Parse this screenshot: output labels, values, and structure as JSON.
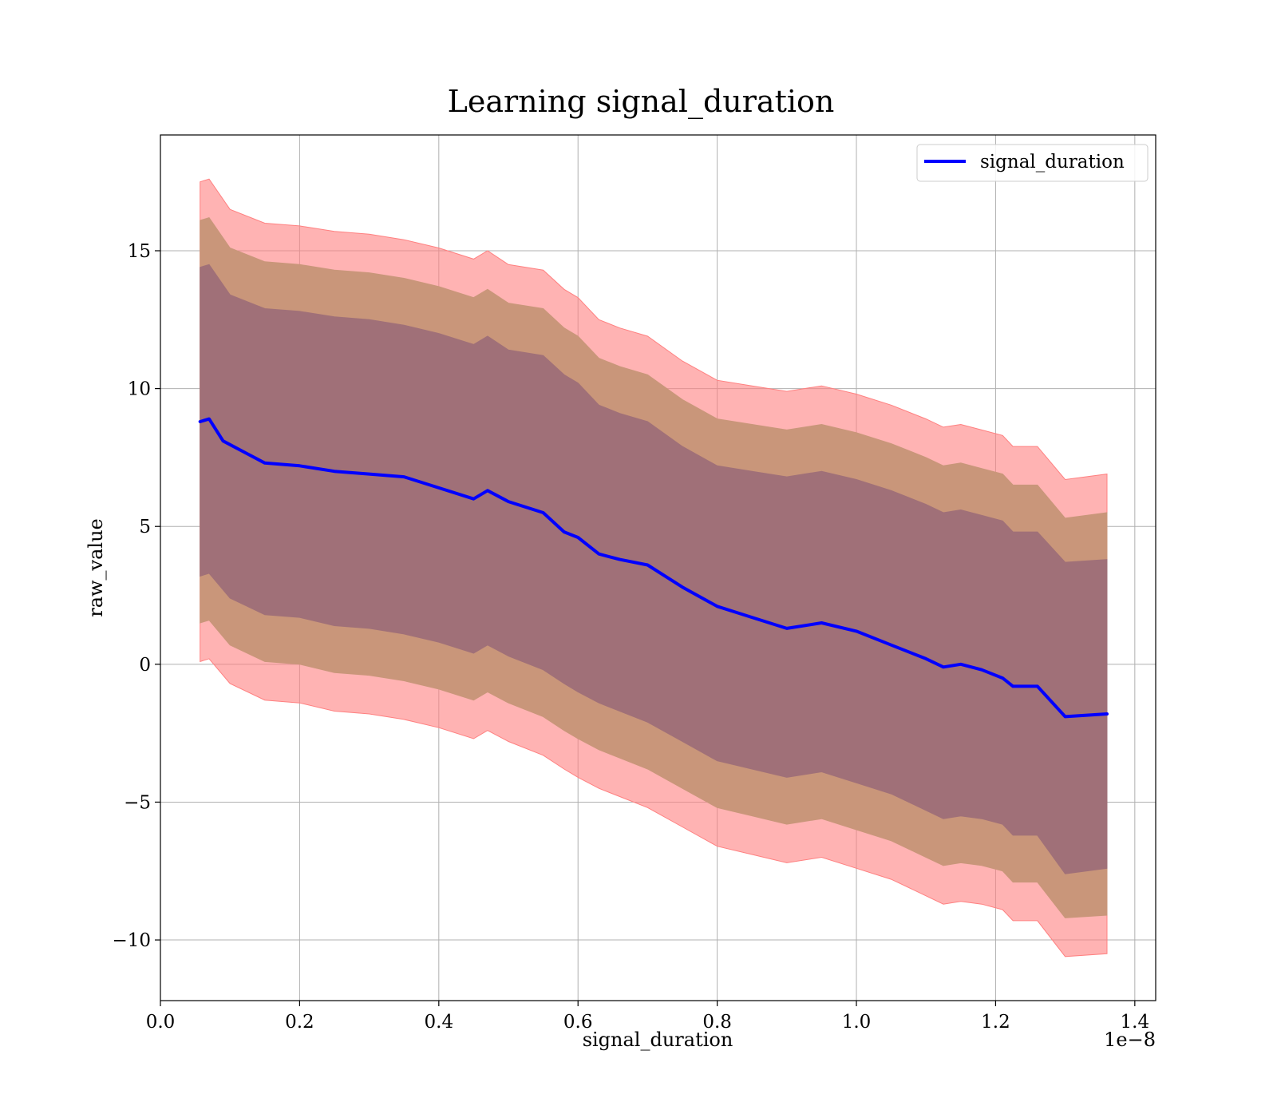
{
  "chart_data": {
    "type": "line",
    "title": "Learning signal_duration",
    "xlabel": "signal_duration",
    "ylabel": "raw_value",
    "x_offset_label": "1e−8",
    "xlim": [
      0.0,
      1.43
    ],
    "ylim": [
      -12.2,
      19.2
    ],
    "x_ticks": [
      0.0,
      0.2,
      0.4,
      0.6,
      0.8,
      1.0,
      1.2,
      1.4
    ],
    "x_tick_labels": [
      "0.0",
      "0.2",
      "0.4",
      "0.6",
      "0.8",
      "1.0",
      "1.2",
      "1.4"
    ],
    "y_ticks": [
      -10,
      -5,
      0,
      5,
      10,
      15
    ],
    "y_tick_labels": [
      "−10",
      "−5",
      "0",
      "5",
      "10",
      "15"
    ],
    "grid": true,
    "legend_position": "top-right",
    "series": [
      {
        "name": "signal_duration",
        "color": "#0000ff",
        "x": [
          0.057,
          0.07,
          0.09,
          0.12,
          0.15,
          0.2,
          0.25,
          0.3,
          0.35,
          0.4,
          0.45,
          0.47,
          0.5,
          0.55,
          0.58,
          0.6,
          0.63,
          0.66,
          0.7,
          0.75,
          0.8,
          0.85,
          0.9,
          0.95,
          1.0,
          1.05,
          1.1,
          1.125,
          1.15,
          1.18,
          1.21,
          1.225,
          1.26,
          1.3,
          1.36
        ],
        "y": [
          8.8,
          8.9,
          8.1,
          7.7,
          7.3,
          7.2,
          7.0,
          6.9,
          6.8,
          6.4,
          6.0,
          6.3,
          5.9,
          5.5,
          4.8,
          4.6,
          4.0,
          3.8,
          3.6,
          2.8,
          2.1,
          1.7,
          1.3,
          1.5,
          1.2,
          0.7,
          0.2,
          -0.1,
          0.0,
          -0.2,
          -0.5,
          -0.8,
          -0.8,
          -1.9,
          -1.8
        ]
      }
    ],
    "bands": [
      {
        "name": "outer",
        "color": "#ff8080",
        "opacity": 0.6,
        "x": [
          0.057,
          0.07,
          0.1,
          0.15,
          0.2,
          0.25,
          0.3,
          0.35,
          0.4,
          0.45,
          0.47,
          0.5,
          0.55,
          0.58,
          0.6,
          0.63,
          0.66,
          0.7,
          0.75,
          0.8,
          0.85,
          0.9,
          0.95,
          1.0,
          1.05,
          1.1,
          1.125,
          1.15,
          1.18,
          1.21,
          1.225,
          1.26,
          1.3,
          1.36
        ],
        "upper": [
          17.5,
          17.6,
          16.5,
          16.0,
          15.9,
          15.7,
          15.6,
          15.4,
          15.1,
          14.7,
          15.0,
          14.5,
          14.3,
          13.6,
          13.3,
          12.5,
          12.2,
          11.9,
          11.0,
          10.3,
          10.1,
          9.9,
          10.1,
          9.8,
          9.4,
          8.9,
          8.6,
          8.7,
          8.5,
          8.3,
          7.9,
          7.9,
          6.7,
          6.9
        ],
        "lower": [
          0.1,
          0.2,
          -0.7,
          -1.3,
          -1.4,
          -1.7,
          -1.8,
          -2.0,
          -2.3,
          -2.7,
          -2.4,
          -2.8,
          -3.3,
          -3.8,
          -4.1,
          -4.5,
          -4.8,
          -5.2,
          -5.9,
          -6.6,
          -6.9,
          -7.2,
          -7.0,
          -7.4,
          -7.8,
          -8.4,
          -8.7,
          -8.6,
          -8.7,
          -8.9,
          -9.3,
          -9.3,
          -10.6,
          -10.5
        ]
      },
      {
        "name": "middle",
        "color": "#c9967a",
        "opacity": 1.0,
        "x": [
          0.057,
          0.07,
          0.1,
          0.15,
          0.2,
          0.25,
          0.3,
          0.35,
          0.4,
          0.45,
          0.47,
          0.5,
          0.55,
          0.58,
          0.6,
          0.63,
          0.66,
          0.7,
          0.75,
          0.8,
          0.85,
          0.9,
          0.95,
          1.0,
          1.05,
          1.1,
          1.125,
          1.15,
          1.18,
          1.21,
          1.225,
          1.26,
          1.3,
          1.36
        ],
        "upper": [
          16.1,
          16.2,
          15.1,
          14.6,
          14.5,
          14.3,
          14.2,
          14.0,
          13.7,
          13.3,
          13.6,
          13.1,
          12.9,
          12.2,
          11.9,
          11.1,
          10.8,
          10.5,
          9.6,
          8.9,
          8.7,
          8.5,
          8.7,
          8.4,
          8.0,
          7.5,
          7.2,
          7.3,
          7.1,
          6.9,
          6.5,
          6.5,
          5.3,
          5.5
        ],
        "lower": [
          1.5,
          1.6,
          0.7,
          0.1,
          0.0,
          -0.3,
          -0.4,
          -0.6,
          -0.9,
          -1.3,
          -1.0,
          -1.4,
          -1.9,
          -2.4,
          -2.7,
          -3.1,
          -3.4,
          -3.8,
          -4.5,
          -5.2,
          -5.5,
          -5.8,
          -5.6,
          -6.0,
          -6.4,
          -7.0,
          -7.3,
          -7.2,
          -7.3,
          -7.5,
          -7.9,
          -7.9,
          -9.2,
          -9.1
        ]
      },
      {
        "name": "inner",
        "color": "#a07078",
        "opacity": 1.0,
        "x": [
          0.057,
          0.07,
          0.1,
          0.15,
          0.2,
          0.25,
          0.3,
          0.35,
          0.4,
          0.45,
          0.47,
          0.5,
          0.55,
          0.58,
          0.6,
          0.63,
          0.66,
          0.7,
          0.75,
          0.8,
          0.85,
          0.9,
          0.95,
          1.0,
          1.05,
          1.1,
          1.125,
          1.15,
          1.18,
          1.21,
          1.225,
          1.26,
          1.3,
          1.36
        ],
        "upper": [
          14.4,
          14.5,
          13.4,
          12.9,
          12.8,
          12.6,
          12.5,
          12.3,
          12.0,
          11.6,
          11.9,
          11.4,
          11.2,
          10.5,
          10.2,
          9.4,
          9.1,
          8.8,
          7.9,
          7.2,
          7.0,
          6.8,
          7.0,
          6.7,
          6.3,
          5.8,
          5.5,
          5.6,
          5.4,
          5.2,
          4.8,
          4.8,
          3.7,
          3.8
        ],
        "lower": [
          3.2,
          3.3,
          2.4,
          1.8,
          1.7,
          1.4,
          1.3,
          1.1,
          0.8,
          0.4,
          0.7,
          0.3,
          -0.2,
          -0.7,
          -1.0,
          -1.4,
          -1.7,
          -2.1,
          -2.8,
          -3.5,
          -3.8,
          -4.1,
          -3.9,
          -4.3,
          -4.7,
          -5.3,
          -5.6,
          -5.5,
          -5.6,
          -5.8,
          -6.2,
          -6.2,
          -7.6,
          -7.4
        ]
      }
    ]
  }
}
